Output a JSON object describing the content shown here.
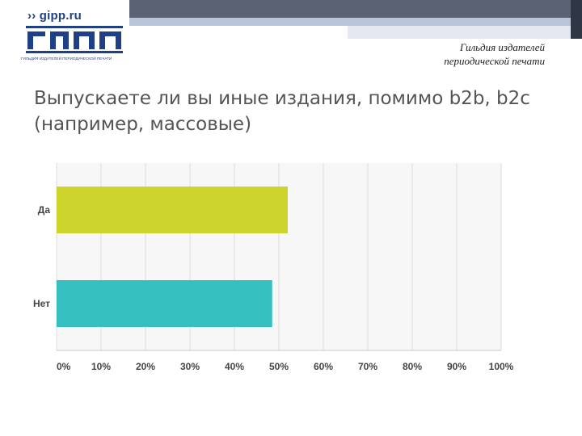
{
  "header": {
    "logo_domain": "›› gipp.ru",
    "logo_caption": "ГИЛЬДИЯ ИЗДАТЕЛЕЙ ПЕРИОДИЧЕСКОЙ ПЕЧАТИ",
    "org_line1": "Гильдия издателей",
    "org_line2": "периодической печати"
  },
  "slide": {
    "title": "Выпускаете ли вы иные издания, помимо b2b, b2c (например, массовые)"
  },
  "colors": {
    "da": "#cdd52c",
    "net": "#35bfbf",
    "brand": "#1f3f86"
  },
  "chart_data": {
    "type": "bar",
    "orientation": "horizontal",
    "categories": [
      "Да",
      "Нет"
    ],
    "values": [
      52,
      48.5
    ],
    "unit": "%",
    "xlim": [
      0,
      100
    ],
    "xticks": [
      "0%",
      "10%",
      "20%",
      "30%",
      "40%",
      "50%",
      "60%",
      "70%",
      "80%",
      "90%",
      "100%"
    ],
    "grid": true,
    "legend": "none",
    "title": "",
    "xlabel": "",
    "ylabel": ""
  }
}
